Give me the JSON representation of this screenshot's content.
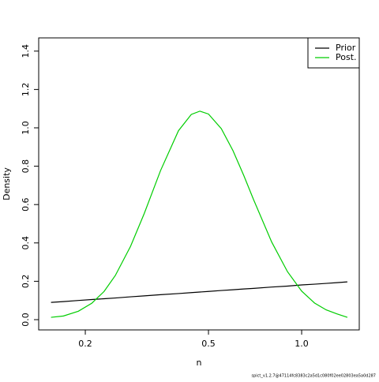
{
  "chart_data": {
    "type": "line",
    "xlabel": "n",
    "ylabel": "Density",
    "log_x": true,
    "x": [
      0.155,
      0.17,
      0.19,
      0.21,
      0.23,
      0.25,
      0.28,
      0.31,
      0.35,
      0.4,
      0.44,
      0.469,
      0.5,
      0.55,
      0.6,
      0.65,
      0.7,
      0.8,
      0.9,
      1.0,
      1.1,
      1.2,
      1.3,
      1.405
    ],
    "series": [
      {
        "name": "Prior",
        "color": "#000000",
        "values": [
          0.09,
          0.094,
          0.1,
          0.105,
          0.109,
          0.113,
          0.119,
          0.124,
          0.13,
          0.136,
          0.141,
          0.144,
          0.147,
          0.152,
          0.156,
          0.16,
          0.163,
          0.17,
          0.175,
          0.181,
          0.185,
          0.189,
          0.193,
          0.197
        ]
      },
      {
        "name": "Post.",
        "color": "#00cd00",
        "values": [
          0.012,
          0.019,
          0.044,
          0.086,
          0.147,
          0.23,
          0.382,
          0.553,
          0.777,
          0.985,
          1.07,
          1.087,
          1.072,
          0.996,
          0.881,
          0.752,
          0.624,
          0.405,
          0.25,
          0.149,
          0.087,
          0.051,
          0.03,
          0.012
        ]
      }
    ],
    "xlim": [
      0.1414,
      1.535
    ],
    "xticks": [
      0.2,
      0.5,
      {
        "value": 1,
        "label": "1.0"
      }
    ],
    "ylim": [
      -0.0535,
      1.469
    ],
    "yticks": [
      {
        "value": 0,
        "label": "0.0"
      },
      0.2,
      0.4,
      0.6,
      0.8,
      {
        "value": 1,
        "label": "1.0"
      },
      1.2,
      1.4
    ],
    "legend": "top-right",
    "footer": "spict_v1.2.7@47114fc8383c2a5d1c080f02ee02803ea5a0d287"
  }
}
